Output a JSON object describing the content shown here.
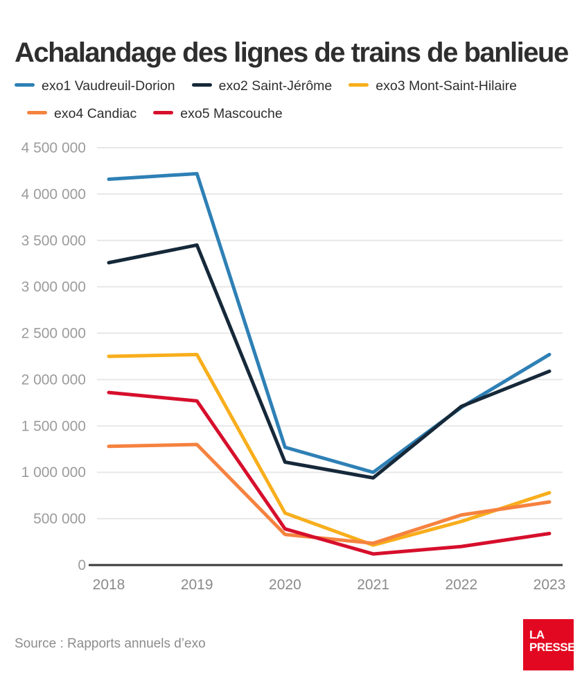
{
  "title": "Achalandage des lignes de trains de banlieue",
  "source": "Source : Rapports annuels d’exo",
  "logo": {
    "line1": "LA",
    "line2": "PRESSE",
    "color": "#e30821"
  },
  "colors": {
    "grid": "#e7e7e7",
    "axis": "#383838",
    "tick_label": "#9b9b9b",
    "title_text": "#2e2e2e",
    "legend_text": "#2e2e2e"
  },
  "chart_data": {
    "type": "line",
    "x": [
      "2018",
      "2019",
      "2020",
      "2021",
      "2022",
      "2023"
    ],
    "series": [
      {
        "id": "exo1",
        "name": "exo1 Vaudreuil-Dorion",
        "color": "#2e80b5",
        "values": [
          4160000,
          4220000,
          1270000,
          1000000,
          1700000,
          2270000
        ]
      },
      {
        "id": "exo2",
        "name": "exo2 Saint-Jérôme",
        "color": "#16293a",
        "values": [
          3260000,
          3450000,
          1110000,
          940000,
          1710000,
          2090000
        ]
      },
      {
        "id": "exo3",
        "name": "exo3 Mont-Saint-Hilaire",
        "color": "#f8ae1c",
        "values": [
          2250000,
          2270000,
          560000,
          215000,
          470000,
          780000
        ]
      },
      {
        "id": "exo4",
        "name": "exo4 Candiac",
        "color": "#f5823f",
        "values": [
          1280000,
          1300000,
          330000,
          235000,
          540000,
          680000
        ]
      },
      {
        "id": "exo5",
        "name": "exo5 Mascouche",
        "color": "#d60f2c",
        "values": [
          1860000,
          1770000,
          390000,
          120000,
          200000,
          340000
        ]
      }
    ],
    "ylim": [
      0,
      4500000
    ],
    "ytick_interval": 500000,
    "ytick_labels": [
      "0",
      "500 000",
      "1 000 000",
      "1 500 000",
      "2 000 000",
      "2 500 000",
      "3 000 000",
      "3 500 000",
      "4 000 000",
      "4 500 000"
    ],
    "grid": true,
    "legend_position": "top"
  }
}
